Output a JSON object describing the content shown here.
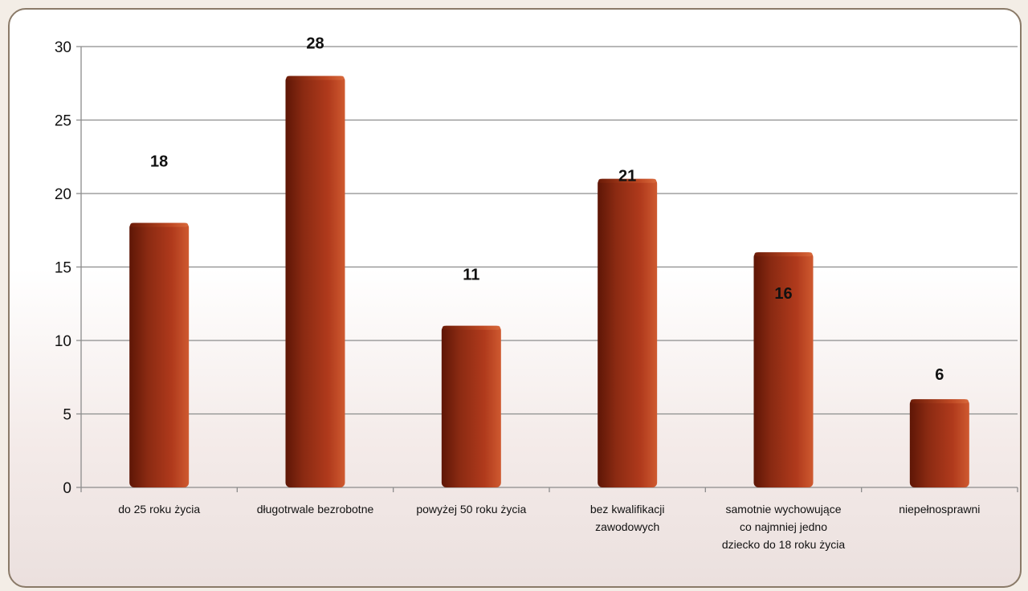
{
  "chart_data": {
    "type": "bar",
    "categories": [
      [
        "do 25 roku życia"
      ],
      [
        "długotrwale bezrobotne"
      ],
      [
        "powyżej 50 roku życia"
      ],
      [
        "bez kwalifikacji",
        "zawodowych"
      ],
      [
        "samotnie wychowujące",
        "co najmniej jedno",
        "dziecko do 18 roku życia"
      ],
      [
        "niepełnosprawni"
      ]
    ],
    "values": [
      18,
      28,
      11,
      21,
      16,
      6
    ],
    "ylim": [
      0,
      30
    ],
    "yticks": [
      0,
      5,
      10,
      15,
      20,
      25,
      30
    ],
    "grid": true,
    "bar_color": "#b03a1c",
    "bar_dark": "#5e1606",
    "frame_border": "#8a7a68"
  }
}
